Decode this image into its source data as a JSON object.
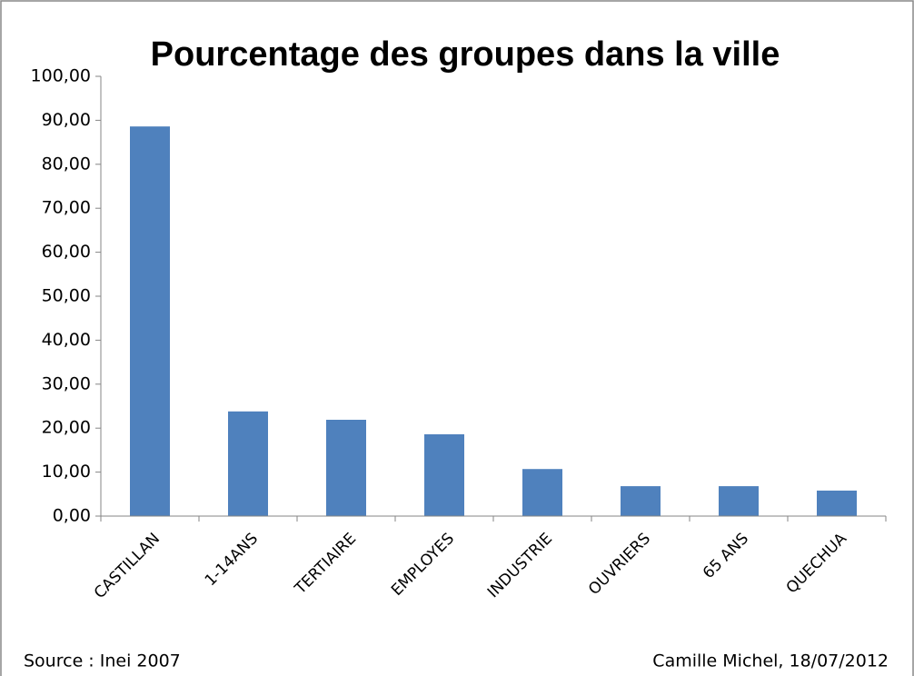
{
  "chart_data": {
    "type": "bar",
    "title": "Pourcentage des groupes dans la ville",
    "categories": [
      "CASTILLAN",
      "1-14ANS",
      "TERTIAIRE",
      "EMPLOYES",
      "INDUSTRIE",
      "OUVRIERS",
      "65 ANS",
      "QUECHUA"
    ],
    "values": [
      88.6,
      23.8,
      21.9,
      18.6,
      10.7,
      6.8,
      6.8,
      5.8
    ],
    "color": "#4f81bd",
    "ylim": [
      0,
      100
    ],
    "yticks": [
      {
        "value": 0,
        "label": "0,00"
      },
      {
        "value": 10,
        "label": "10,00"
      },
      {
        "value": 20,
        "label": "20,00"
      },
      {
        "value": 30,
        "label": "30,00"
      },
      {
        "value": 40,
        "label": "40,00"
      },
      {
        "value": 50,
        "label": "50,00"
      },
      {
        "value": 60,
        "label": "60,00"
      },
      {
        "value": 70,
        "label": "70,00"
      },
      {
        "value": 80,
        "label": "80,00"
      },
      {
        "value": 90,
        "label": "90,00"
      },
      {
        "value": 100,
        "label": "100,00"
      }
    ],
    "grid": false,
    "source": "Source : Inei 2007",
    "author": "Camille Michel, 18/07/2012"
  }
}
